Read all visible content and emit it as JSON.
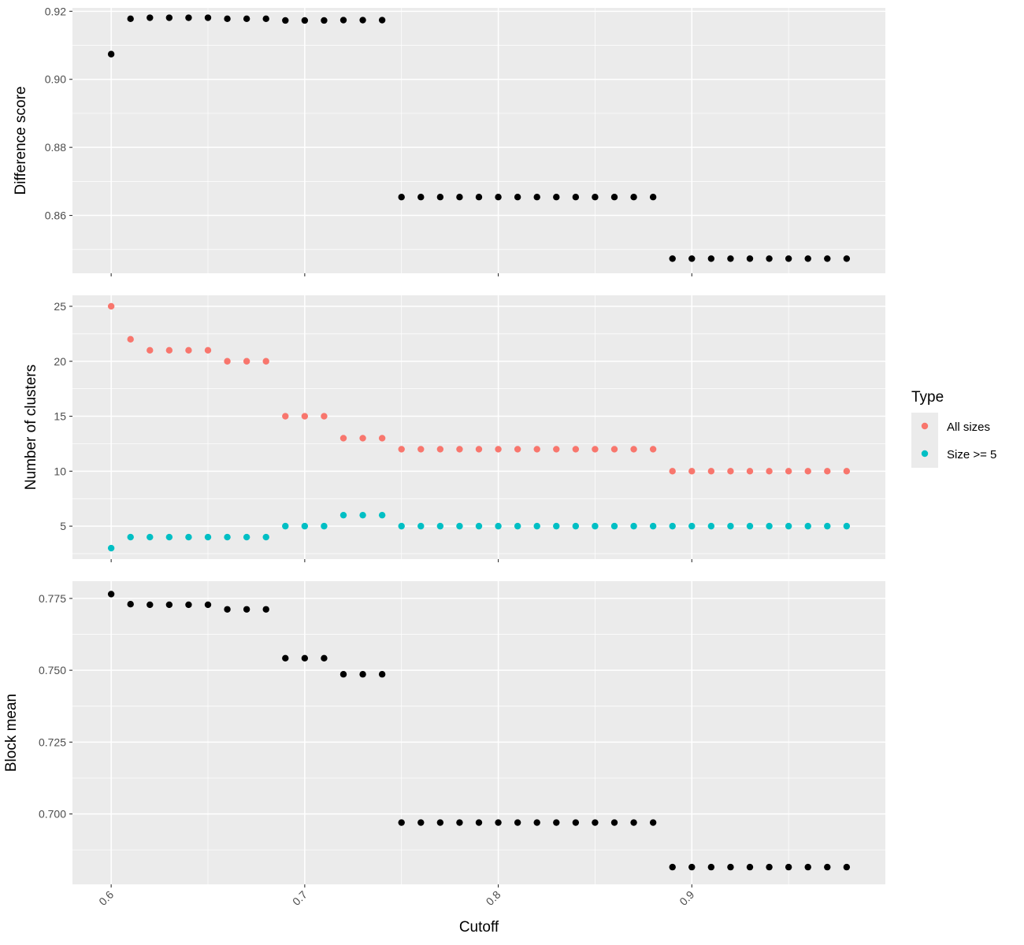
{
  "chart_data": {
    "type": "scatter",
    "x_label": "Cutoff",
    "x_ticks": [
      "0.6",
      "0.7",
      "0.8",
      "0.9"
    ],
    "x_tick_values": [
      0.6,
      0.7,
      0.8,
      0.9
    ],
    "xlim": [
      0.58,
      1.0
    ],
    "panels": [
      {
        "ylabel": "Difference score",
        "ylim": [
          0.843,
          0.921
        ],
        "y_ticks": [
          "0.86",
          "0.88",
          "0.90",
          "0.92"
        ],
        "y_tick_values": [
          0.86,
          0.88,
          0.9,
          0.92
        ],
        "series": [
          {
            "color": "#000000",
            "x": [
              0.6,
              0.61,
              0.62,
              0.63,
              0.64,
              0.65,
              0.66,
              0.67,
              0.68,
              0.69,
              0.7,
              0.71,
              0.72,
              0.73,
              0.74,
              0.75,
              0.76,
              0.77,
              0.78,
              0.79,
              0.8,
              0.81,
              0.82,
              0.83,
              0.84,
              0.85,
              0.86,
              0.87,
              0.88,
              0.89,
              0.9,
              0.91,
              0.92,
              0.93,
              0.94,
              0.95,
              0.96,
              0.97,
              0.98
            ],
            "y": [
              0.9074,
              0.9178,
              0.9181,
              0.9181,
              0.9181,
              0.9181,
              0.9178,
              0.9178,
              0.9178,
              0.9173,
              0.9173,
              0.9173,
              0.9174,
              0.9174,
              0.9174,
              0.8654,
              0.8654,
              0.8654,
              0.8654,
              0.8654,
              0.8654,
              0.8654,
              0.8654,
              0.8654,
              0.8654,
              0.8654,
              0.8654,
              0.8654,
              0.8654,
              0.8473,
              0.8473,
              0.8473,
              0.8473,
              0.8473,
              0.8473,
              0.8473,
              0.8473,
              0.8473,
              0.8473
            ]
          }
        ]
      },
      {
        "ylabel": "Number of clusters",
        "ylim": [
          2.0,
          26.0
        ],
        "y_ticks": [
          "5",
          "10",
          "15",
          "20",
          "25"
        ],
        "y_tick_values": [
          5,
          10,
          15,
          20,
          25
        ],
        "series": [
          {
            "name": "All sizes",
            "color": "#F8766D",
            "x": [
              0.6,
              0.61,
              0.62,
              0.63,
              0.64,
              0.65,
              0.66,
              0.67,
              0.68,
              0.69,
              0.7,
              0.71,
              0.72,
              0.73,
              0.74,
              0.75,
              0.76,
              0.77,
              0.78,
              0.79,
              0.8,
              0.81,
              0.82,
              0.83,
              0.84,
              0.85,
              0.86,
              0.87,
              0.88,
              0.89,
              0.9,
              0.91,
              0.92,
              0.93,
              0.94,
              0.95,
              0.96,
              0.97,
              0.98
            ],
            "y": [
              25,
              22,
              21,
              21,
              21,
              21,
              20,
              20,
              20,
              15,
              15,
              15,
              13,
              13,
              13,
              12,
              12,
              12,
              12,
              12,
              12,
              12,
              12,
              12,
              12,
              12,
              12,
              12,
              12,
              10,
              10,
              10,
              10,
              10,
              10,
              10,
              10,
              10,
              10
            ]
          },
          {
            "name": "Size >= 5",
            "color": "#00BFC4",
            "x": [
              0.6,
              0.61,
              0.62,
              0.63,
              0.64,
              0.65,
              0.66,
              0.67,
              0.68,
              0.69,
              0.7,
              0.71,
              0.72,
              0.73,
              0.74,
              0.75,
              0.76,
              0.77,
              0.78,
              0.79,
              0.8,
              0.81,
              0.82,
              0.83,
              0.84,
              0.85,
              0.86,
              0.87,
              0.88,
              0.89,
              0.9,
              0.91,
              0.92,
              0.93,
              0.94,
              0.95,
              0.96,
              0.97,
              0.98
            ],
            "y": [
              3,
              4,
              4,
              4,
              4,
              4,
              4,
              4,
              4,
              5,
              5,
              5,
              6,
              6,
              6,
              5,
              5,
              5,
              5,
              5,
              5,
              5,
              5,
              5,
              5,
              5,
              5,
              5,
              5,
              5,
              5,
              5,
              5,
              5,
              5,
              5,
              5,
              5,
              5
            ]
          }
        ]
      },
      {
        "ylabel": "Block mean",
        "ylim": [
          0.6755,
          0.781
        ],
        "y_ticks": [
          "0.700",
          "0.725",
          "0.750",
          "0.775"
        ],
        "y_tick_values": [
          0.7,
          0.725,
          0.75,
          0.775
        ],
        "series": [
          {
            "color": "#000000",
            "x": [
              0.6,
              0.61,
              0.62,
              0.63,
              0.64,
              0.65,
              0.66,
              0.67,
              0.68,
              0.69,
              0.7,
              0.71,
              0.72,
              0.73,
              0.74,
              0.75,
              0.76,
              0.77,
              0.78,
              0.79,
              0.8,
              0.81,
              0.82,
              0.83,
              0.84,
              0.85,
              0.86,
              0.87,
              0.88,
              0.89,
              0.9,
              0.91,
              0.92,
              0.93,
              0.94,
              0.95,
              0.96,
              0.97,
              0.98
            ],
            "y": [
              0.7765,
              0.773,
              0.7728,
              0.7728,
              0.7728,
              0.7728,
              0.7712,
              0.7712,
              0.7712,
              0.7542,
              0.7542,
              0.7542,
              0.7486,
              0.7486,
              0.7486,
              0.697,
              0.697,
              0.697,
              0.697,
              0.697,
              0.697,
              0.697,
              0.697,
              0.697,
              0.697,
              0.697,
              0.697,
              0.697,
              0.697,
              0.6815,
              0.6815,
              0.6815,
              0.6815,
              0.6815,
              0.6815,
              0.6815,
              0.6815,
              0.6815,
              0.6815
            ]
          }
        ]
      }
    ],
    "legend": {
      "title": "Type",
      "placement": "right",
      "items": [
        {
          "label": "All sizes",
          "color": "#F8766D"
        },
        {
          "label": "Size >= 5",
          "color": "#00BFC4"
        }
      ]
    },
    "grid": true
  },
  "colors": {
    "panel_background": "#EBEBEB",
    "grid_major": "#FFFFFF"
  }
}
